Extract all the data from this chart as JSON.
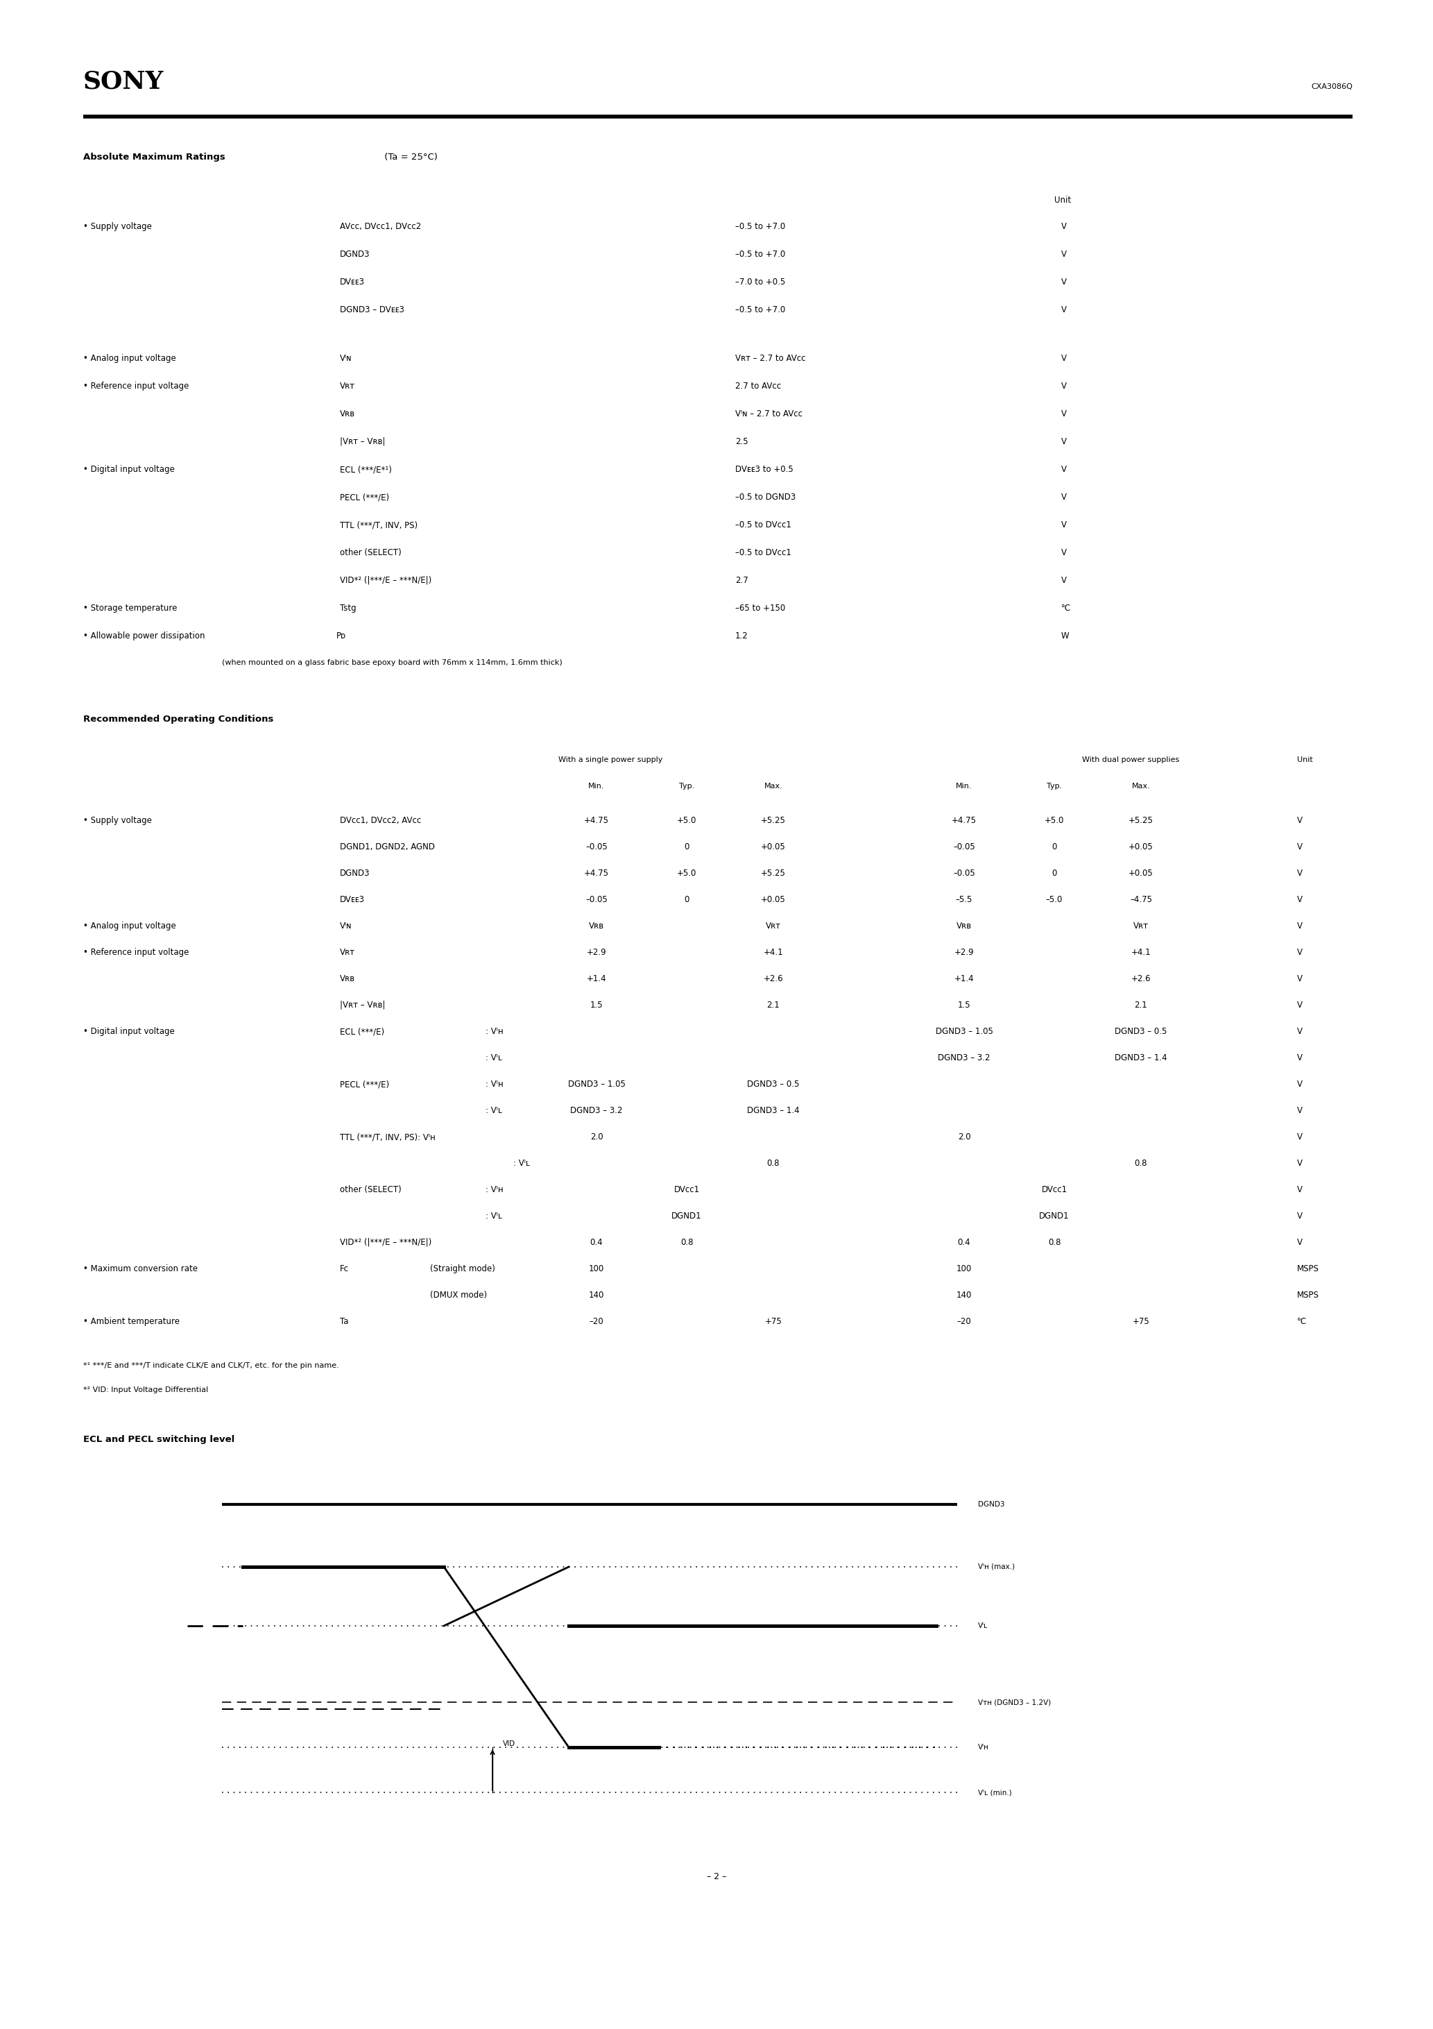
{
  "page_width": 20.66,
  "page_height": 29.24,
  "bg_color": "#ffffff",
  "title": "SONY",
  "part_number": "CXA3086Q",
  "page_number": "– 2 –"
}
